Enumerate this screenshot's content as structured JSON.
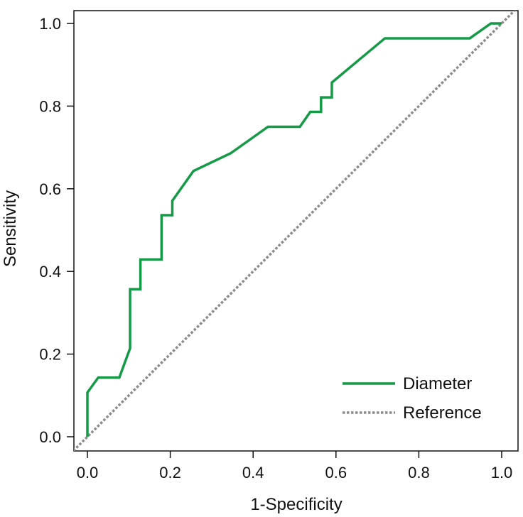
{
  "chart_data": {
    "type": "line",
    "title": "",
    "xlabel": "1-Specificity",
    "ylabel": "Sensitivity",
    "xlim": [
      0,
      1
    ],
    "ylim": [
      0,
      1
    ],
    "grid": false,
    "legend_position": "bottom-right",
    "x_ticks": [
      "0.0",
      "0.2",
      "0.4",
      "0.6",
      "0.8",
      "1.0"
    ],
    "y_ticks": [
      "0.0",
      "0.2",
      "0.4",
      "0.6",
      "0.8",
      "1.0"
    ],
    "series": [
      {
        "name": "Diameter",
        "color": "#159a48",
        "style": "solid",
        "x": [
          0.0,
          0.0,
          0.026,
          0.077,
          0.103,
          0.103,
          0.128,
          0.128,
          0.179,
          0.179,
          0.205,
          0.205,
          0.256,
          0.346,
          0.436,
          0.513,
          0.538,
          0.564,
          0.564,
          0.59,
          0.59,
          0.718,
          0.923,
          0.974,
          1.0
        ],
        "y": [
          0.0,
          0.107,
          0.143,
          0.143,
          0.214,
          0.357,
          0.357,
          0.429,
          0.429,
          0.536,
          0.536,
          0.571,
          0.643,
          0.686,
          0.75,
          0.75,
          0.786,
          0.786,
          0.821,
          0.821,
          0.857,
          0.964,
          0.964,
          1.0,
          1.0
        ]
      },
      {
        "name": "Reference",
        "color": "#8c8c8c",
        "style": "dotted",
        "x": [
          -0.034,
          1.034
        ],
        "y": [
          -0.034,
          1.034
        ]
      }
    ]
  }
}
